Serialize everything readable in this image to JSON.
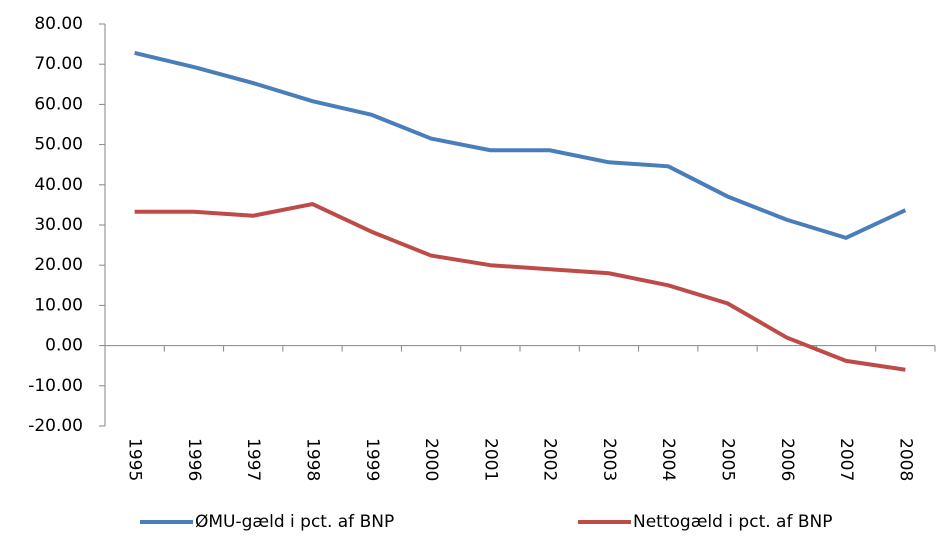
{
  "chart_data": {
    "type": "line",
    "categories": [
      "1995",
      "1996",
      "1997",
      "1998",
      "1999",
      "2000",
      "2001",
      "2002",
      "2003",
      "2004",
      "2005",
      "2006",
      "2007",
      "2008"
    ],
    "series": [
      {
        "name": "ØMU-gæld i pct. af BNP",
        "color": "#4a7ebb",
        "values": [
          72.8,
          69.3,
          65.3,
          60.8,
          57.4,
          51.5,
          48.6,
          48.6,
          45.6,
          44.6,
          37.1,
          31.3,
          26.8,
          33.7
        ]
      },
      {
        "name": "Nettogæld i pct. af BNP",
        "color": "#be4b48",
        "values": [
          33.3,
          33.3,
          32.3,
          35.2,
          28.3,
          22.4,
          20.0,
          19.0,
          18.0,
          15.0,
          10.5,
          2.0,
          -3.8,
          -6.0
        ]
      }
    ],
    "ylim": [
      -20,
      80
    ],
    "yticks": [
      {
        "value": -20,
        "label": "-20.00"
      },
      {
        "value": -10,
        "label": "-10.00"
      },
      {
        "value": 0,
        "label": "0.00"
      },
      {
        "value": 10,
        "label": "10.00"
      },
      {
        "value": 20,
        "label": "20.00"
      },
      {
        "value": 30,
        "label": "30.00"
      },
      {
        "value": 40,
        "label": "40.00"
      },
      {
        "value": 50,
        "label": "50.00"
      },
      {
        "value": 60,
        "label": "60.00"
      },
      {
        "value": 70,
        "label": "70.00"
      },
      {
        "value": 80,
        "label": "80.00"
      }
    ],
    "grid": false,
    "legend": "bottom"
  }
}
